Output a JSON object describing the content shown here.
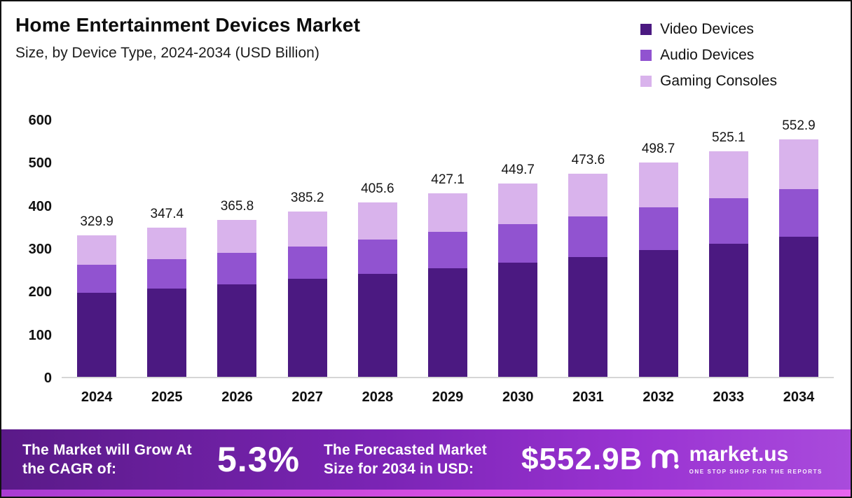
{
  "header": {
    "title": "Home Entertainment Devices Market",
    "subtitle": "Size, by Device Type, 2024-2034 (USD Billion)"
  },
  "legend": [
    {
      "label": "Video Devices",
      "color": "#4b1981"
    },
    {
      "label": "Audio Devices",
      "color": "#9153d0"
    },
    {
      "label": "Gaming Consoles",
      "color": "#d9b3ec"
    }
  ],
  "chart_data": {
    "type": "bar",
    "stacked": true,
    "title": "Home Entertainment Devices Market Size, by Device Type, 2024-2034 (USD Billion)",
    "categories": [
      "2024",
      "2025",
      "2026",
      "2027",
      "2028",
      "2029",
      "2030",
      "2031",
      "2032",
      "2033",
      "2034"
    ],
    "series": [
      {
        "name": "Video Devices",
        "color": "#4b1981",
        "values": [
          195.0,
          205.0,
          216.0,
          227.5,
          239.5,
          252.0,
          265.5,
          279.5,
          294.5,
          310.0,
          326.5
        ]
      },
      {
        "name": "Audio Devices",
        "color": "#9153d0",
        "values": [
          66.0,
          69.0,
          72.5,
          76.5,
          80.5,
          85.0,
          89.5,
          94.5,
          99.5,
          105.0,
          110.5
        ]
      },
      {
        "name": "Gaming Consoles",
        "color": "#d9b3ec",
        "values": [
          68.9,
          73.4,
          77.3,
          81.2,
          85.6,
          90.1,
          94.7,
          99.6,
          104.7,
          110.1,
          115.9
        ]
      }
    ],
    "totals": [
      329.9,
      347.4,
      365.8,
      385.2,
      405.6,
      427.1,
      449.7,
      473.6,
      498.7,
      525.1,
      552.9
    ],
    "xlabel": "",
    "ylabel": "",
    "ylim": [
      0,
      600
    ],
    "yticks": [
      0,
      100,
      200,
      300,
      400,
      500,
      600
    ],
    "grid": false,
    "legend_position": "top-right"
  },
  "footer": {
    "cagr_label": "The Market will Grow At the CAGR of:",
    "cagr_value": "5.3%",
    "forecast_label": "The Forecasted Market Size for 2034 in USD:",
    "forecast_value": "$552.9B",
    "brand": "market.us",
    "brand_tagline": "ONE STOP SHOP FOR THE REPORTS"
  }
}
